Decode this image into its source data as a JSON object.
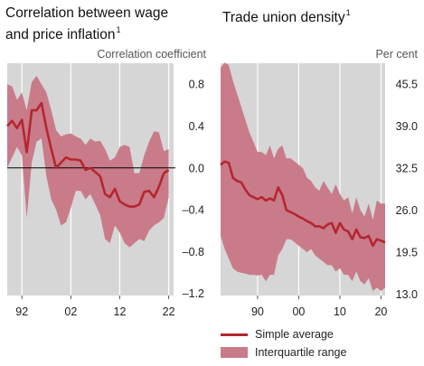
{
  "colors": {
    "panel_bg": "#d6d6d6",
    "band": "#c97b8a",
    "line": "#b5262f",
    "grid": "#ffffff",
    "zero_line": "#000000"
  },
  "chart_data": [
    {
      "type": "line",
      "title": "Correlation between wage and price inflation",
      "title_lines": [
        "Correlation between wage",
        "and price inflation"
      ],
      "footnote_mark": "1",
      "ylabel": "Correlation coefficient",
      "xlim": [
        1989,
        2023
      ],
      "ylim": [
        -1.22,
        1.0
      ],
      "yticks": [
        0.8,
        0.4,
        0.0,
        -0.4,
        -0.8,
        -1.2
      ],
      "ytick_labels": [
        "0.8",
        "0.4",
        "0.0",
        "–0.4",
        "–0.8",
        "–1.2"
      ],
      "xticks": [
        1992,
        2002,
        2012,
        2022
      ],
      "xtick_labels": [
        "92",
        "02",
        "12",
        "22"
      ],
      "zero_line": true,
      "x": [
        1989,
        1990,
        1991,
        1992,
        1993,
        1994,
        1995,
        1996,
        1997,
        1998,
        1999,
        2000,
        2001,
        2002,
        2003,
        2004,
        2005,
        2006,
        2007,
        2008,
        2009,
        2010,
        2011,
        2012,
        2013,
        2014,
        2015,
        2016,
        2017,
        2018,
        2019,
        2020,
        2021,
        2022
      ],
      "series": [
        {
          "name": "Simple average",
          "role": "line",
          "values": [
            0.4,
            0.45,
            0.38,
            0.46,
            0.15,
            0.55,
            0.55,
            0.62,
            0.38,
            0.18,
            0.0,
            0.05,
            0.1,
            0.08,
            0.08,
            0.07,
            -0.02,
            0.0,
            -0.04,
            -0.08,
            -0.25,
            -0.28,
            -0.2,
            -0.32,
            -0.35,
            -0.37,
            -0.37,
            -0.35,
            -0.23,
            -0.22,
            -0.28,
            -0.18,
            -0.05,
            -0.02
          ]
        },
        {
          "name": "Interquartile range",
          "role": "band",
          "upper": [
            0.8,
            0.78,
            0.65,
            0.72,
            0.55,
            0.82,
            0.88,
            0.8,
            0.72,
            0.55,
            0.36,
            0.3,
            0.32,
            0.33,
            0.3,
            0.28,
            0.22,
            0.28,
            0.25,
            0.26,
            0.18,
            0.07,
            0.1,
            0.2,
            0.22,
            0.2,
            -0.05,
            -0.05,
            0.12,
            0.25,
            0.35,
            0.34,
            0.16,
            0.18
          ],
          "lower": [
            0.0,
            0.1,
            0.2,
            0.12,
            -0.48,
            0.05,
            0.25,
            0.28,
            -0.08,
            -0.3,
            -0.4,
            -0.55,
            -0.52,
            -0.38,
            -0.22,
            -0.22,
            -0.3,
            -0.25,
            -0.35,
            -0.45,
            -0.68,
            -0.72,
            -0.55,
            -0.62,
            -0.72,
            -0.76,
            -0.72,
            -0.68,
            -0.7,
            -0.6,
            -0.55,
            -0.52,
            -0.48,
            -0.28
          ]
        }
      ]
    },
    {
      "type": "line",
      "title": "Trade union density",
      "footnote_mark": "1",
      "ylabel": "Per cent",
      "xlim": [
        1981,
        2021
      ],
      "ylim": [
        12.8,
        48.7
      ],
      "yticks": [
        45.5,
        39.0,
        32.5,
        26.0,
        19.5,
        13.0
      ],
      "ytick_labels": [
        "45.5",
        "39.0",
        "32.5",
        "26.0",
        "19.5",
        "13.0"
      ],
      "xticks": [
        1990,
        2000,
        2010,
        2020
      ],
      "xtick_labels": [
        "90",
        "00",
        "10",
        "20"
      ],
      "x": [
        1981,
        1982,
        1983,
        1984,
        1985,
        1986,
        1987,
        1988,
        1989,
        1990,
        1991,
        1992,
        1993,
        1994,
        1995,
        1996,
        1997,
        1998,
        1999,
        2000,
        2001,
        2002,
        2003,
        2004,
        2005,
        2006,
        2007,
        2008,
        2009,
        2010,
        2011,
        2012,
        2013,
        2014,
        2015,
        2016,
        2017,
        2018,
        2019,
        2020,
        2021
      ],
      "series": [
        {
          "name": "Simple average",
          "role": "line",
          "values": [
            33.0,
            33.5,
            33.3,
            31.0,
            30.5,
            30.3,
            29.2,
            28.3,
            28.0,
            27.7,
            28.0,
            27.5,
            27.8,
            27.5,
            29.5,
            28.3,
            26.0,
            25.7,
            25.4,
            25.0,
            24.7,
            24.3,
            24.0,
            23.5,
            23.5,
            23.2,
            23.8,
            24.0,
            22.5,
            24.0,
            23.0,
            22.7,
            21.5,
            23.0,
            21.8,
            21.7,
            22.0,
            20.5,
            21.5,
            21.3,
            21.0
          ]
        },
        {
          "name": "Interquartile range",
          "role": "band",
          "upper": [
            48.0,
            48.8,
            48.4,
            46.0,
            44.0,
            42.0,
            40.0,
            38.0,
            36.5,
            35.0,
            35.0,
            34.5,
            36.0,
            34.0,
            35.5,
            36.0,
            34.0,
            34.0,
            33.5,
            33.0,
            32.5,
            31.0,
            30.5,
            29.5,
            29.0,
            30.5,
            29.5,
            28.5,
            30.0,
            28.5,
            27.5,
            28.0,
            25.5,
            28.0,
            26.0,
            25.0,
            27.0,
            24.5,
            27.5,
            27.0,
            27.0
          ]
        },
        {
          "name": "Interquartile range (lower)",
          "role": "band_lower",
          "lower": [
            22.0,
            20.0,
            18.5,
            17.0,
            16.5,
            16.3,
            16.2,
            16.0,
            16.0,
            15.9,
            16.0,
            15.0,
            16.0,
            16.0,
            19.0,
            20.0,
            21.5,
            21.5,
            21.0,
            20.5,
            20.0,
            19.5,
            20.0,
            19.0,
            18.5,
            18.0,
            17.5,
            17.5,
            16.5,
            17.0,
            16.0,
            16.0,
            15.0,
            16.5,
            15.0,
            14.5,
            15.5,
            13.5,
            14.0,
            13.5,
            14.0
          ]
        }
      ]
    }
  ],
  "legend": {
    "items": [
      {
        "label": "Simple average",
        "kind": "line"
      },
      {
        "label": "Interquartile range",
        "kind": "band"
      }
    ]
  }
}
